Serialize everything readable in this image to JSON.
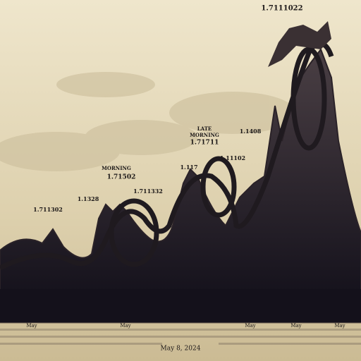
{
  "labels": [
    {
      "text": "1.7111022"
    },
    {
      "text": "LATE"
    },
    {
      "text": "MORNING"
    },
    {
      "text": "1.71711"
    },
    {
      "text": "1.1408"
    },
    {
      "text": "1.117"
    },
    {
      "text": "1.11102"
    },
    {
      "text": "MORNING"
    },
    {
      "text": "1.71502"
    },
    {
      "text": "1.1328"
    },
    {
      "text": "1.711332"
    },
    {
      "text": "1.711302"
    }
  ],
  "axis_labels": [
    "May",
    "May",
    "May",
    "May",
    "May"
  ],
  "date": "May 8, 2024"
}
